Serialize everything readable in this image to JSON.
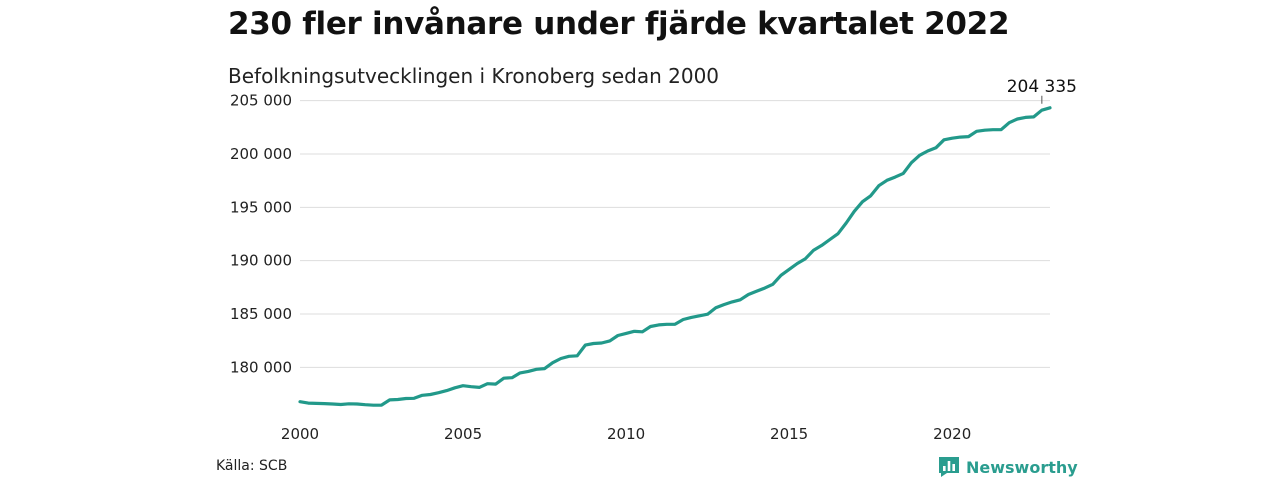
{
  "header": {
    "title": "230 fler invånare under fjärde kvartalet 2022",
    "subtitle": "Befolkningsutvecklingen i Kronoberg sedan 2000"
  },
  "footer": {
    "source": "Källa: SCB",
    "brand": "Newsworthy"
  },
  "colors": {
    "line": "#22998a",
    "grid": "#dddddd",
    "brand": "#2a9d8f"
  },
  "chart_data": {
    "type": "line",
    "title": "230 fler invånare under fjärde kvartalet 2022",
    "subtitle": "Befolkningsutvecklingen i Kronoberg sedan 2000",
    "xlabel": "",
    "ylabel": "",
    "xlim": [
      2000,
      2023
    ],
    "ylim": [
      176000,
      206000
    ],
    "grid": "horizontal",
    "x_ticks": [
      {
        "value": 2000,
        "label": "2000"
      },
      {
        "value": 2005,
        "label": "2005"
      },
      {
        "value": 2010,
        "label": "2010"
      },
      {
        "value": 2015,
        "label": "2015"
      },
      {
        "value": 2020,
        "label": "2020"
      }
    ],
    "y_ticks": [
      {
        "value": 180000,
        "label": "180 000"
      },
      {
        "value": 185000,
        "label": "185 000"
      },
      {
        "value": 190000,
        "label": "190 000"
      },
      {
        "value": 195000,
        "label": "195 000"
      },
      {
        "value": 200000,
        "label": "200 000"
      },
      {
        "value": 205000,
        "label": "205 000"
      }
    ],
    "annotation": {
      "x": 2022.75,
      "y": 204335,
      "label": "204 335"
    },
    "series": [
      {
        "values": [
          [
            2000.0,
            176780
          ],
          [
            2000.25,
            176650
          ],
          [
            2000.5,
            176620
          ],
          [
            2000.75,
            176600
          ],
          [
            2001.0,
            176560
          ],
          [
            2001.25,
            176520
          ],
          [
            2001.5,
            176580
          ],
          [
            2001.75,
            176560
          ],
          [
            2002.0,
            176500
          ],
          [
            2002.25,
            176450
          ],
          [
            2002.5,
            176460
          ],
          [
            2002.75,
            176950
          ],
          [
            2003.0,
            176980
          ],
          [
            2003.25,
            177080
          ],
          [
            2003.5,
            177100
          ],
          [
            2003.75,
            177380
          ],
          [
            2004.0,
            177450
          ],
          [
            2004.25,
            177620
          ],
          [
            2004.5,
            177820
          ],
          [
            2004.75,
            178080
          ],
          [
            2005.0,
            178280
          ],
          [
            2005.25,
            178180
          ],
          [
            2005.5,
            178120
          ],
          [
            2005.75,
            178470
          ],
          [
            2006.0,
            178430
          ],
          [
            2006.25,
            178980
          ],
          [
            2006.5,
            179030
          ],
          [
            2006.75,
            179480
          ],
          [
            2007.0,
            179620
          ],
          [
            2007.25,
            179820
          ],
          [
            2007.5,
            179880
          ],
          [
            2007.75,
            180430
          ],
          [
            2008.0,
            180830
          ],
          [
            2008.25,
            181030
          ],
          [
            2008.5,
            181080
          ],
          [
            2008.75,
            182080
          ],
          [
            2009.0,
            182230
          ],
          [
            2009.25,
            182280
          ],
          [
            2009.5,
            182480
          ],
          [
            2009.75,
            182980
          ],
          [
            2010.0,
            183180
          ],
          [
            2010.25,
            183380
          ],
          [
            2010.5,
            183330
          ],
          [
            2010.75,
            183830
          ],
          [
            2011.0,
            183980
          ],
          [
            2011.25,
            184030
          ],
          [
            2011.5,
            184030
          ],
          [
            2011.75,
            184480
          ],
          [
            2012.0,
            184680
          ],
          [
            2012.25,
            184830
          ],
          [
            2012.5,
            184980
          ],
          [
            2012.75,
            185580
          ],
          [
            2013.0,
            185880
          ],
          [
            2013.25,
            186130
          ],
          [
            2013.5,
            186330
          ],
          [
            2013.75,
            186830
          ],
          [
            2014.0,
            187130
          ],
          [
            2014.25,
            187430
          ],
          [
            2014.5,
            187780
          ],
          [
            2014.75,
            188630
          ],
          [
            2015.0,
            189180
          ],
          [
            2015.25,
            189730
          ],
          [
            2015.5,
            190180
          ],
          [
            2015.75,
            190980
          ],
          [
            2016.0,
            191430
          ],
          [
            2016.25,
            191980
          ],
          [
            2016.5,
            192530
          ],
          [
            2016.75,
            193530
          ],
          [
            2017.0,
            194630
          ],
          [
            2017.25,
            195530
          ],
          [
            2017.5,
            196080
          ],
          [
            2017.75,
            197030
          ],
          [
            2018.0,
            197530
          ],
          [
            2018.25,
            197830
          ],
          [
            2018.5,
            198180
          ],
          [
            2018.75,
            199180
          ],
          [
            2019.0,
            199880
          ],
          [
            2019.25,
            200280
          ],
          [
            2019.5,
            200580
          ],
          [
            2019.75,
            201330
          ],
          [
            2020.0,
            201480
          ],
          [
            2020.25,
            201580
          ],
          [
            2020.5,
            201630
          ],
          [
            2020.75,
            202130
          ],
          [
            2021.0,
            202230
          ],
          [
            2021.25,
            202280
          ],
          [
            2021.5,
            202280
          ],
          [
            2021.75,
            202930
          ],
          [
            2022.0,
            203280
          ],
          [
            2022.25,
            203430
          ],
          [
            2022.5,
            203480
          ],
          [
            2022.75,
            204105
          ],
          [
            2023.0,
            204335
          ]
        ]
      }
    ]
  }
}
